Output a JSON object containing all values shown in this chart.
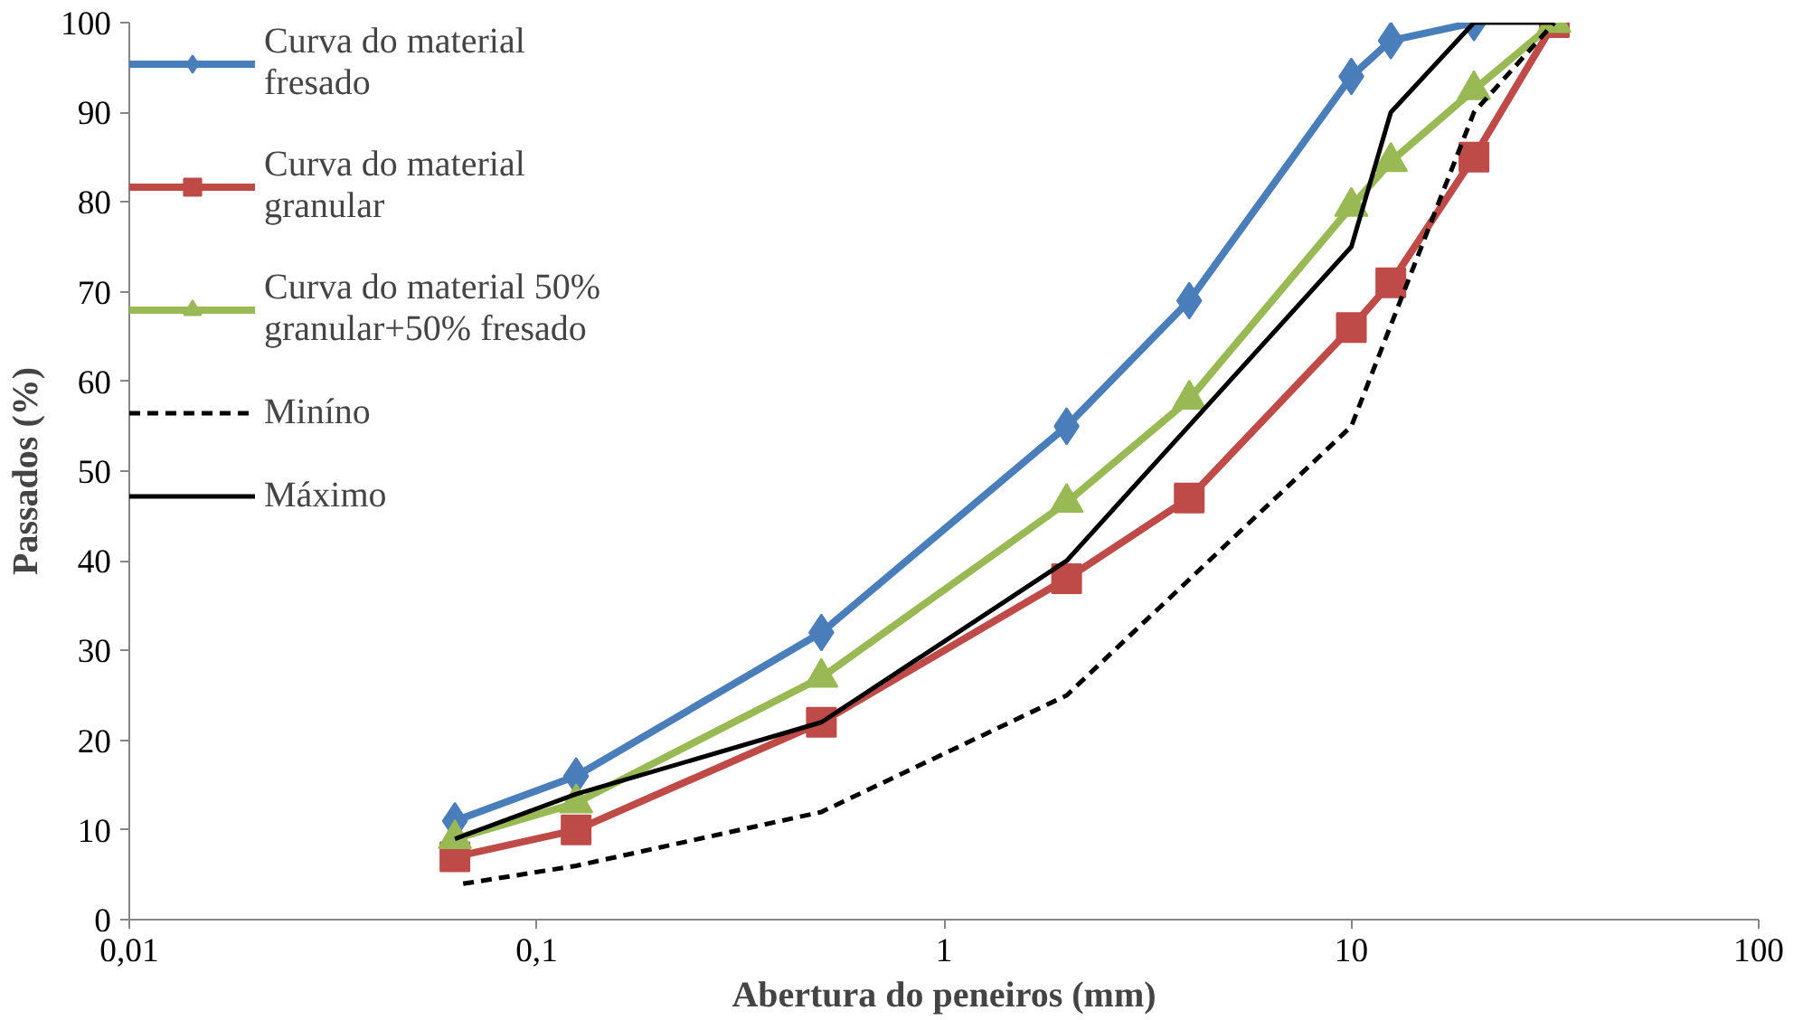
{
  "chart_data": {
    "type": "line",
    "xlabel": "Abertura do peneiros (mm)",
    "ylabel": "Passados (%)",
    "log": "x",
    "xlim": [
      0.01,
      100
    ],
    "ylim": [
      0,
      100
    ],
    "xticks": [
      {
        "value": 0.01,
        "label": "0,01"
      },
      {
        "value": 0.1,
        "label": "0,1"
      },
      1,
      10,
      100
    ],
    "yticks": [
      0,
      10,
      20,
      30,
      40,
      50,
      60,
      70,
      80,
      90,
      100
    ],
    "grid": false,
    "legend": "top left",
    "series": [
      {
        "name": "Curva do material fresado",
        "color": "#4a7ebb",
        "marker": "diamond",
        "line_style": "solid",
        "x": [
          0.063,
          0.125,
          0.5,
          2,
          4,
          10,
          12.5,
          20
        ],
        "values": [
          11,
          16,
          32,
          55,
          69,
          94,
          98,
          100
        ]
      },
      {
        "name": "Curva do material granular",
        "color": "#be4b48",
        "marker": "square",
        "line_style": "solid",
        "x": [
          0.063,
          0.125,
          0.5,
          2,
          4,
          10,
          12.5,
          20,
          31.5
        ],
        "values": [
          7,
          10,
          22,
          38,
          47,
          66,
          71,
          85,
          100
        ]
      },
      {
        "name": "Curva do material 50% granular+50% fresado",
        "color": "#98b954",
        "marker": "triangle",
        "line_style": "solid",
        "x": [
          0.063,
          0.125,
          0.5,
          2,
          4,
          10,
          12.5,
          20,
          31.5
        ],
        "values": [
          9,
          13,
          27,
          46.5,
          58,
          79.5,
          84.5,
          92.5,
          100
        ]
      },
      {
        "name": "Miníno",
        "color": "#000000",
        "marker": "none",
        "line_style": "dashed",
        "x": [
          0.066,
          0.125,
          0.5,
          2,
          10,
          20,
          31.5
        ],
        "values": [
          4,
          6,
          12,
          25,
          55,
          90,
          100
        ]
      },
      {
        "name": "Máximo",
        "color": "#000000",
        "marker": "none",
        "line_style": "solid",
        "x": [
          0.063,
          0.125,
          0.5,
          2,
          10,
          12.5,
          20,
          31.5
        ],
        "values": [
          9,
          14,
          22,
          40,
          75,
          90,
          100,
          100
        ]
      }
    ]
  }
}
